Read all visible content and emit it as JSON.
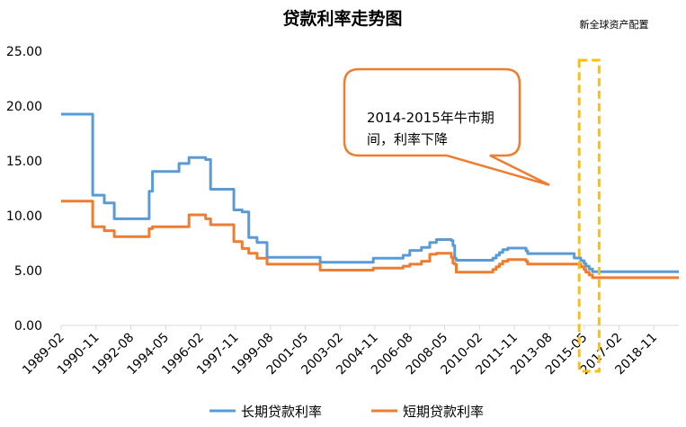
{
  "chart_data": {
    "type": "line",
    "title": "贷款利率走势图",
    "source_note": "新全球资产配置",
    "ylim": [
      0,
      25
    ],
    "y_ticks": [
      "0.00",
      "5.00",
      "10.00",
      "15.00",
      "20.00",
      "25.00"
    ],
    "x_ticks": [
      "1989-02",
      "1990-11",
      "1992-08",
      "1994-05",
      "1996-02",
      "1997-11",
      "1999-08",
      "2001-05",
      "2003-02",
      "2004-11",
      "2006-08",
      "2008-05",
      "2010-02",
      "2011-11",
      "2013-08",
      "2015-05",
      "2017-02",
      "2018-11"
    ],
    "x_range": [
      "1989-02",
      "2020-02"
    ],
    "grid": false,
    "legend_position": "bottom",
    "series": [
      {
        "name": "长期贷款利率",
        "color": "#5B9BD5",
        "points": [
          [
            "1989-02",
            19.26
          ],
          [
            "1990-08",
            19.26
          ],
          [
            "1990-09",
            11.88
          ],
          [
            "1991-04",
            11.16
          ],
          [
            "1991-10",
            9.72
          ],
          [
            "1993-05",
            9.72
          ],
          [
            "1993-07",
            12.24
          ],
          [
            "1993-09",
            14.04
          ],
          [
            "1995-01",
            14.76
          ],
          [
            "1995-07",
            15.3
          ],
          [
            "1996-05",
            15.12
          ],
          [
            "1996-08",
            12.42
          ],
          [
            "1997-10",
            10.53
          ],
          [
            "1998-03",
            10.35
          ],
          [
            "1998-07",
            8.01
          ],
          [
            "1998-12",
            7.56
          ],
          [
            "1999-06",
            6.21
          ],
          [
            "2002-02",
            5.76
          ],
          [
            "2004-10",
            6.12
          ],
          [
            "2006-04",
            6.39
          ],
          [
            "2006-08",
            6.84
          ],
          [
            "2007-03",
            7.11
          ],
          [
            "2007-08",
            7.56
          ],
          [
            "2007-12",
            7.83
          ],
          [
            "2008-09",
            7.74
          ],
          [
            "2008-10",
            7.29
          ],
          [
            "2008-11",
            6.12
          ],
          [
            "2008-12",
            5.94
          ],
          [
            "2010-10",
            6.14
          ],
          [
            "2010-12",
            6.4
          ],
          [
            "2011-02",
            6.65
          ],
          [
            "2011-04",
            6.9
          ],
          [
            "2011-07",
            7.05
          ],
          [
            "2012-06",
            6.8
          ],
          [
            "2012-07",
            6.55
          ],
          [
            "2014-11",
            6.15
          ],
          [
            "2015-03",
            5.9
          ],
          [
            "2015-05",
            5.65
          ],
          [
            "2015-06",
            5.4
          ],
          [
            "2015-08",
            5.15
          ],
          [
            "2015-10",
            4.9
          ],
          [
            "2020-02",
            4.9
          ]
        ]
      },
      {
        "name": "短期贷款利率",
        "color": "#ED7D31",
        "points": [
          [
            "1989-02",
            11.34
          ],
          [
            "1990-08",
            11.34
          ],
          [
            "1990-09",
            9.0
          ],
          [
            "1991-04",
            8.64
          ],
          [
            "1991-10",
            8.1
          ],
          [
            "1993-05",
            8.1
          ],
          [
            "1993-07",
            8.82
          ],
          [
            "1993-09",
            9.0
          ],
          [
            "1995-01",
            9.0
          ],
          [
            "1995-07",
            10.08
          ],
          [
            "1996-05",
            9.72
          ],
          [
            "1996-08",
            9.18
          ],
          [
            "1997-10",
            7.65
          ],
          [
            "1998-03",
            7.02
          ],
          [
            "1998-07",
            6.57
          ],
          [
            "1998-12",
            6.12
          ],
          [
            "1999-06",
            5.58
          ],
          [
            "2002-02",
            5.04
          ],
          [
            "2004-10",
            5.22
          ],
          [
            "2006-04",
            5.4
          ],
          [
            "2006-08",
            5.58
          ],
          [
            "2007-03",
            5.85
          ],
          [
            "2007-08",
            6.48
          ],
          [
            "2007-12",
            6.57
          ],
          [
            "2008-09",
            6.21
          ],
          [
            "2008-10",
            5.67
          ],
          [
            "2008-11",
            5.58
          ],
          [
            "2008-12",
            4.86
          ],
          [
            "2010-10",
            5.1
          ],
          [
            "2010-12",
            5.35
          ],
          [
            "2011-02",
            5.6
          ],
          [
            "2011-04",
            5.85
          ],
          [
            "2011-07",
            6.0
          ],
          [
            "2012-06",
            5.85
          ],
          [
            "2012-07",
            5.6
          ],
          [
            "2014-11",
            5.6
          ],
          [
            "2015-03",
            5.35
          ],
          [
            "2015-05",
            5.1
          ],
          [
            "2015-06",
            4.85
          ],
          [
            "2015-08",
            4.6
          ],
          [
            "2015-10",
            4.35
          ],
          [
            "2020-02",
            4.35
          ]
        ]
      }
    ],
    "annotation": {
      "text_line1": "2014-2015年牛市期",
      "text_line2": "间，利率下降",
      "callout_fill": "#ffffff",
      "callout_border": "#ED7D31",
      "pointer_target": [
        "2013-08",
        12.8
      ]
    },
    "highlight_range": {
      "from": "2015-02",
      "to": "2016-02",
      "color": "#FFC000"
    }
  }
}
